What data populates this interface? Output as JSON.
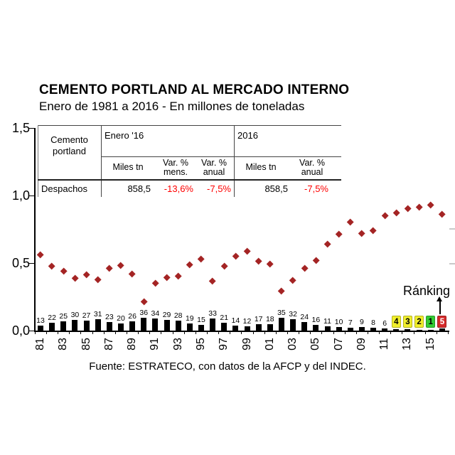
{
  "header": {
    "title": "CEMENTO PORTLAND AL MERCADO INTERNO",
    "subtitle": "Enero de 1981 a 2016 - En millones de toneladas"
  },
  "summary_table": {
    "row_header": "Cemento portland",
    "groups": [
      {
        "label": "Enero '16",
        "cols": [
          "Miles tn",
          "Var. % mens.",
          "Var. % anual"
        ]
      },
      {
        "label": "2016",
        "cols": [
          "Miles tn",
          "Var. % anual"
        ]
      }
    ],
    "row": {
      "label": "Despachos",
      "values": [
        "858,5",
        "-13,6%",
        "-7,5%",
        "858,5",
        "-7,5%"
      ]
    },
    "negative_color": "#ff0000"
  },
  "chart_data": {
    "type": "scatter+bar",
    "ylim": [
      0,
      1.5
    ],
    "ytick_values": [
      0,
      0.5,
      1.0,
      1.5
    ],
    "ytick_labels": [
      "0,0",
      "0,5",
      "1,0",
      "1,5"
    ],
    "years": [
      1981,
      1982,
      1983,
      1984,
      1985,
      1986,
      1987,
      1988,
      1989,
      1990,
      1991,
      1992,
      1993,
      1994,
      1995,
      1996,
      1997,
      1998,
      1999,
      2000,
      2001,
      2002,
      2003,
      2004,
      2005,
      2006,
      2007,
      2008,
      2009,
      2010,
      2011,
      2012,
      2013,
      2014,
      2015,
      2016
    ],
    "xtick_labels": [
      "81",
      "83",
      "85",
      "87",
      "89",
      "91",
      "93",
      "95",
      "97",
      "99",
      "01",
      "03",
      "05",
      "07",
      "09",
      "11",
      "13",
      "15"
    ],
    "series": [
      {
        "name": "Despachos (millones de toneladas)",
        "type": "scatter",
        "marker": "diamond",
        "color": "#a42424",
        "values": [
          0.56,
          0.474,
          0.44,
          0.385,
          0.41,
          0.377,
          0.46,
          0.483,
          0.416,
          0.21,
          0.35,
          0.39,
          0.4,
          0.486,
          0.53,
          0.365,
          0.475,
          0.55,
          0.585,
          0.51,
          0.49,
          0.29,
          0.37,
          0.458,
          0.52,
          0.64,
          0.71,
          0.8,
          0.72,
          0.74,
          0.85,
          0.87,
          0.9,
          0.91,
          0.93,
          0.86
        ]
      },
      {
        "name": "Ránking",
        "type": "bar",
        "color": "#000000",
        "values": [
          13,
          22,
          25,
          30,
          27,
          31,
          23,
          20,
          26,
          36,
          34,
          29,
          28,
          19,
          15,
          33,
          21,
          14,
          12,
          17,
          18,
          35,
          32,
          24,
          16,
          11,
          10,
          7,
          9,
          8,
          6,
          4,
          3,
          2,
          1,
          5
        ]
      }
    ],
    "rank_highlights": [
      {
        "year": 2012,
        "rank": 4,
        "bg": "#f0ee2c",
        "fg": "#000000"
      },
      {
        "year": 2013,
        "rank": 3,
        "bg": "#f0ee2c",
        "fg": "#000000"
      },
      {
        "year": 2014,
        "rank": 2,
        "bg": "#f0ee2c",
        "fg": "#000000"
      },
      {
        "year": 2015,
        "rank": 1,
        "bg": "#33cc33",
        "fg": "#000000"
      },
      {
        "year": 2016,
        "rank": 5,
        "bg": "#d42a2a",
        "fg": "#ffffff"
      }
    ],
    "annotation": {
      "label": "Ránking"
    },
    "legend": "off",
    "grid": "off"
  },
  "footer": {
    "source": "Fuente: ESTRATECO, con datos de la AFCP y del INDEC."
  }
}
